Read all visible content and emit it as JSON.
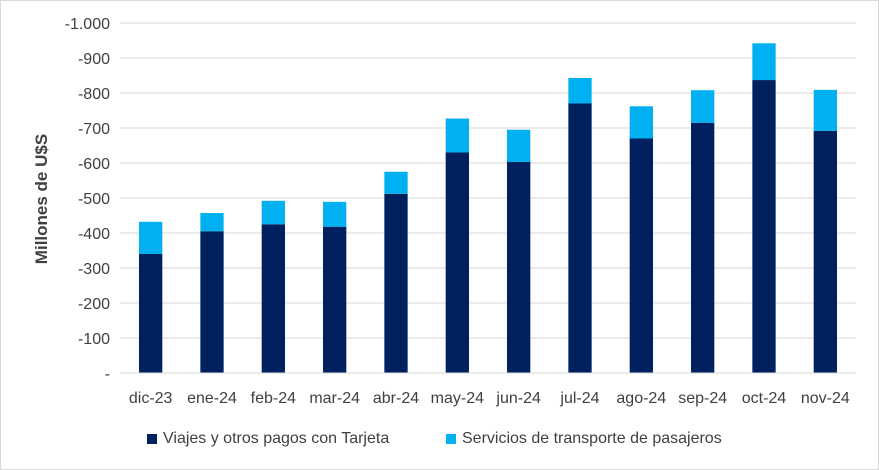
{
  "colors": {
    "series1": "#002060",
    "series2": "#00B0F0",
    "grid": "#d9d9d9",
    "text": "#404040"
  },
  "chart_data": {
    "type": "bar",
    "stacked": true,
    "title": "",
    "xlabel": "",
    "ylabel": "Millones de U$S",
    "ylim": [
      0,
      -1000
    ],
    "yticks": [
      0,
      -100,
      -200,
      -300,
      -400,
      -500,
      -600,
      -700,
      -800,
      -900,
      -1000
    ],
    "ytick_labels": [
      "-",
      "-100",
      "-200",
      "-300",
      "-400",
      "-500",
      "-600",
      "-700",
      "-800",
      "-900",
      "-1.000"
    ],
    "categories": [
      "dic-23",
      "ene-24",
      "feb-24",
      "mar-24",
      "abr-24",
      "may-24",
      "jun-24",
      "jul-24",
      "ago-24",
      "sep-24",
      "oct-24",
      "nov-24"
    ],
    "series": [
      {
        "name": "Viajes y otros pagos con Tarjeta",
        "values": [
          -340,
          -405,
          -425,
          -418,
          -512,
          -630,
          -603,
          -770,
          -670,
          -715,
          -837,
          -692
        ]
      },
      {
        "name": "Servicios de transporte de pasajeros",
        "values": [
          -92,
          -52,
          -67,
          -71,
          -63,
          -97,
          -92,
          -73,
          -92,
          -93,
          -105,
          -117
        ]
      }
    ],
    "grid": true,
    "legend_position": "bottom"
  }
}
